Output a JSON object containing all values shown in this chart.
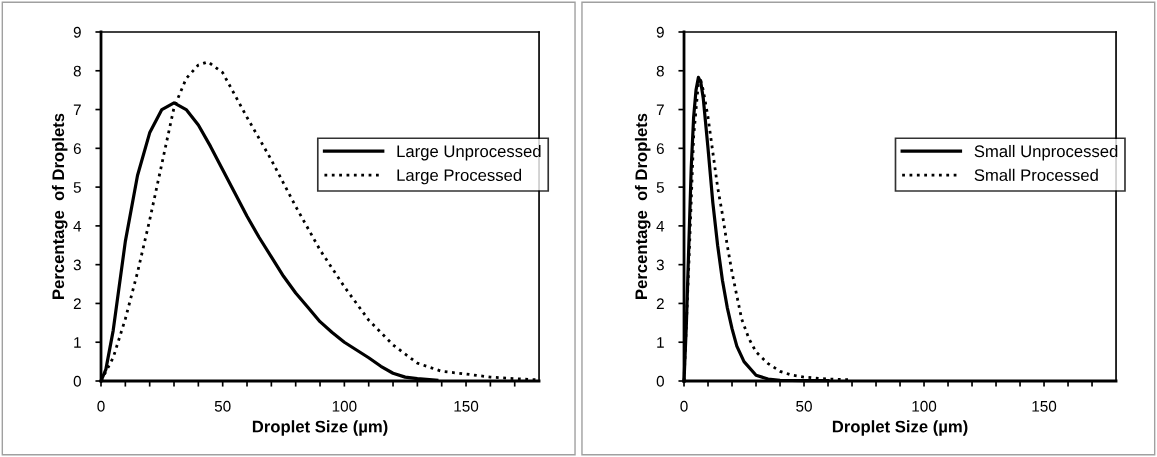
{
  "chart_data": [
    {
      "type": "line",
      "xlabel": "Droplet Size (µm)",
      "ylabel": "Percentage  of Droplets",
      "xlim": [
        0,
        180
      ],
      "ylim": [
        0,
        9
      ],
      "xticks": [
        0,
        {
          "value": 10,
          "label": null
        },
        {
          "value": 20,
          "label": null
        },
        {
          "value": 30,
          "label": null
        },
        {
          "value": 40,
          "label": null
        },
        50,
        {
          "value": 60,
          "label": null
        },
        {
          "value": 70,
          "label": null
        },
        {
          "value": 80,
          "label": null
        },
        {
          "value": 90,
          "label": null
        },
        100,
        {
          "value": 110,
          "label": null
        },
        {
          "value": 120,
          "label": null
        },
        {
          "value": 130,
          "label": null
        },
        {
          "value": 140,
          "label": null
        },
        150,
        {
          "value": 160,
          "label": null
        },
        {
          "value": 170,
          "label": null
        }
      ],
      "yticks": [
        0,
        1,
        2,
        3,
        4,
        5,
        6,
        7,
        8,
        9
      ],
      "legend": "right",
      "grid": false,
      "series": [
        {
          "name": "Large Unprocessed",
          "color": "#000000",
          "line_style": "solid",
          "x": [
            0,
            2,
            5,
            10,
            15,
            20,
            25,
            30,
            35,
            40,
            45,
            50,
            55,
            60,
            65,
            70,
            75,
            80,
            85,
            90,
            95,
            100,
            105,
            110,
            115,
            120,
            125,
            130,
            138
          ],
          "values": [
            0,
            0.3,
            1.3,
            3.6,
            5.3,
            6.4,
            7.0,
            7.17,
            7.0,
            6.6,
            6.05,
            5.45,
            4.85,
            4.25,
            3.7,
            3.2,
            2.7,
            2.27,
            1.9,
            1.53,
            1.25,
            1.0,
            0.8,
            0.6,
            0.38,
            0.2,
            0.1,
            0.06,
            0.02
          ]
        },
        {
          "name": "Large Processed",
          "color": "#000000",
          "line_style": "dotted",
          "x": [
            0,
            5,
            10,
            15,
            20,
            25,
            30,
            35,
            40,
            44,
            50,
            60,
            70,
            80,
            90,
            100,
            110,
            120,
            130,
            140,
            150,
            160,
            170,
            180
          ],
          "values": [
            0,
            0.6,
            1.6,
            2.8,
            4.15,
            5.6,
            7.05,
            7.8,
            8.15,
            8.23,
            7.95,
            6.8,
            5.7,
            4.5,
            3.38,
            2.43,
            1.57,
            0.93,
            0.46,
            0.25,
            0.18,
            0.1,
            0.06,
            0.03
          ]
        }
      ]
    },
    {
      "type": "line",
      "xlabel": "Droplet Size (µm)",
      "ylabel": "Percentage  of Droplets",
      "xlim": [
        0,
        180
      ],
      "ylim": [
        0,
        9
      ],
      "xticks": [
        0,
        {
          "value": 10,
          "label": null
        },
        {
          "value": 20,
          "label": null
        },
        {
          "value": 30,
          "label": null
        },
        {
          "value": 40,
          "label": null
        },
        50,
        {
          "value": 60,
          "label": null
        },
        {
          "value": 70,
          "label": null
        },
        {
          "value": 80,
          "label": null
        },
        {
          "value": 90,
          "label": null
        },
        100,
        {
          "value": 110,
          "label": null
        },
        {
          "value": 120,
          "label": null
        },
        {
          "value": 130,
          "label": null
        },
        {
          "value": 140,
          "label": null
        },
        150,
        {
          "value": 160,
          "label": null
        },
        {
          "value": 170,
          "label": null
        }
      ],
      "yticks": [
        0,
        1,
        2,
        3,
        4,
        5,
        6,
        7,
        8,
        9
      ],
      "legend": "right",
      "grid": false,
      "series": [
        {
          "name": "Small Unprocessed",
          "color": "#000000",
          "line_style": "solid",
          "x": [
            0,
            1,
            2,
            3,
            4,
            5,
            6,
            7,
            8,
            10,
            12,
            14,
            16,
            18,
            20,
            22,
            25,
            30,
            35,
            40,
            50,
            60
          ],
          "values": [
            0,
            1.5,
            3.5,
            5.5,
            6.8,
            7.5,
            7.83,
            7.7,
            7.3,
            6.0,
            4.6,
            3.5,
            2.6,
            1.9,
            1.35,
            0.9,
            0.5,
            0.15,
            0.05,
            0.02,
            0.01,
            0.01
          ]
        },
        {
          "name": "Small Processed",
          "color": "#000000",
          "line_style": "dotted",
          "x": [
            0,
            2,
            4,
            6,
            7,
            8,
            10,
            12,
            14,
            16,
            18,
            20,
            22,
            24,
            27,
            30,
            35,
            40,
            45,
            50,
            60,
            70
          ],
          "values": [
            0,
            3.0,
            6.3,
            7.7,
            7.75,
            7.5,
            6.8,
            5.9,
            5.0,
            4.3,
            3.5,
            2.8,
            2.2,
            1.6,
            1.1,
            0.75,
            0.45,
            0.25,
            0.15,
            0.1,
            0.05,
            0.03
          ]
        }
      ]
    }
  ]
}
